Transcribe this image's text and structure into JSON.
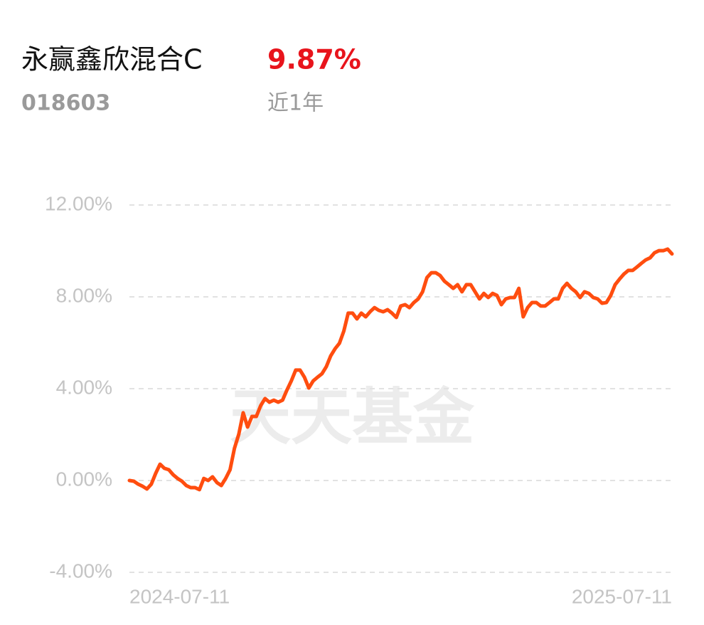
{
  "chart_data": {
    "type": "line",
    "title": "永赢鑫欣混合C",
    "return": "9.87%",
    "code": "018603",
    "period": "近1年",
    "watermark": "天天基金",
    "categories": [
      "2024-07-11",
      null,
      null,
      null,
      null,
      null,
      null,
      null,
      null,
      null,
      null,
      null,
      null,
      null,
      null,
      null,
      null,
      null,
      null,
      null,
      null,
      null,
      null,
      null,
      null,
      null,
      null,
      null,
      null,
      null,
      null,
      null,
      null,
      null,
      null,
      null,
      null,
      null,
      null,
      null,
      null,
      null,
      null,
      null,
      null,
      null,
      null,
      null,
      null,
      null,
      null,
      null,
      null,
      null,
      null,
      null,
      null,
      null,
      null,
      null,
      null,
      null,
      null,
      null,
      null,
      null,
      null,
      null,
      null,
      null,
      null,
      null,
      null,
      null,
      null,
      null,
      null,
      null,
      null,
      null,
      null,
      null,
      null,
      null,
      null,
      null,
      null,
      null,
      null,
      null,
      null,
      null,
      null,
      null,
      null,
      null,
      null,
      null,
      null,
      null,
      null,
      null,
      null,
      null,
      null,
      null,
      null,
      null,
      null,
      null,
      null,
      null,
      null,
      null,
      null,
      null,
      null,
      null,
      null,
      null,
      null,
      null,
      null,
      null,
      "2025-07-11"
    ],
    "series": [
      {
        "color": "#ff4d0f",
        "values": [
          0,
          -0.03,
          -0.16,
          -0.25,
          -0.37,
          -0.16,
          0.31,
          0.71,
          0.53,
          0.47,
          0.25,
          0.09,
          -0.03,
          -0.22,
          -0.31,
          -0.31,
          -0.4,
          0.09,
          0,
          0.16,
          -0.09,
          -0.22,
          0.09,
          0.47,
          1.4,
          2.02,
          2.95,
          2.33,
          2.79,
          2.79,
          3.26,
          3.57,
          3.41,
          3.5,
          3.41,
          3.5,
          3.94,
          4.34,
          4.81,
          4.81,
          4.5,
          4.03,
          4.34,
          4.5,
          4.65,
          4.96,
          5.43,
          5.74,
          5.98,
          6.51,
          7.29,
          7.29,
          7.04,
          7.29,
          7.13,
          7.35,
          7.53,
          7.41,
          7.35,
          7.44,
          7.29,
          7.1,
          7.6,
          7.66,
          7.53,
          7.75,
          7.91,
          8.22,
          8.84,
          9.05,
          9.05,
          8.93,
          8.68,
          8.53,
          8.37,
          8.53,
          8.22,
          8.53,
          8.53,
          8.22,
          7.91,
          8.15,
          7.97,
          8.15,
          8.06,
          7.66,
          7.91,
          7.97,
          7.97,
          8.37,
          7.13,
          7.53,
          7.75,
          7.75,
          7.6,
          7.6,
          7.75,
          7.91,
          7.91,
          8.37,
          8.59,
          8.37,
          8.22,
          7.97,
          8.22,
          8.15,
          7.97,
          7.91,
          7.72,
          7.75,
          8.06,
          8.53,
          8.77,
          8.99,
          9.15,
          9.15,
          9.3,
          9.46,
          9.61,
          9.7,
          9.92,
          10.01,
          10.01,
          10.08,
          9.87
        ]
      }
    ],
    "ylim": [
      -4,
      12
    ],
    "yticks": [
      {
        "value": 12,
        "label": "12.00%"
      },
      {
        "value": 8,
        "label": "8.00%"
      },
      {
        "value": 4,
        "label": "4.00%"
      },
      {
        "value": 0,
        "label": "0.00%"
      },
      {
        "value": -4,
        "label": "-4.00%"
      }
    ],
    "grid": true
  }
}
